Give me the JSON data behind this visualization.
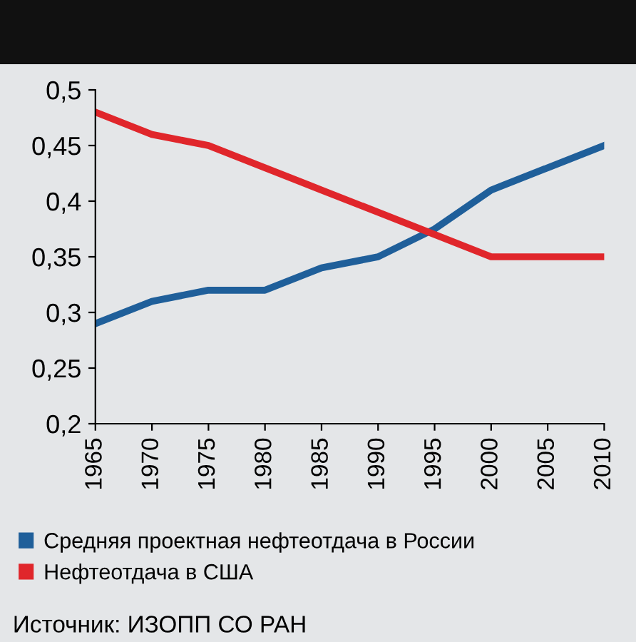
{
  "chart_data": {
    "type": "line",
    "x": [
      1965,
      1970,
      1975,
      1980,
      1985,
      1990,
      1995,
      2000,
      2005,
      2010
    ],
    "series": [
      {
        "name": "Средняя проектная нефтеотдача в России",
        "color": "#1f5f9a",
        "values": [
          0.29,
          0.31,
          0.32,
          0.32,
          0.34,
          0.35,
          0.375,
          0.41,
          0.43,
          0.45
        ]
      },
      {
        "name": "Нефтеотдача в США",
        "color": "#e0262b",
        "values": [
          0.48,
          0.46,
          0.45,
          0.43,
          0.41,
          0.39,
          0.37,
          0.35,
          0.35,
          0.35
        ]
      }
    ],
    "xlim": [
      1965,
      2010
    ],
    "xticks": [
      1965,
      1970,
      1975,
      1980,
      1985,
      1990,
      1995,
      2000,
      2005,
      2010
    ],
    "ylim": [
      0.2,
      0.5
    ],
    "yticks": [
      {
        "value": 0.2,
        "label": "0,2"
      },
      {
        "value": 0.25,
        "label": "0,25"
      },
      {
        "value": 0.3,
        "label": "0,3"
      },
      {
        "value": 0.35,
        "label": "0,35"
      },
      {
        "value": 0.4,
        "label": "0,4"
      },
      {
        "value": 0.45,
        "label": "0,45"
      },
      {
        "value": 0.5,
        "label": "0,5"
      }
    ],
    "grid": false,
    "legend": "bottom",
    "marker": "none",
    "line_style": "solid",
    "annotations": [
      "Источник: ИЗОПП СО РАН"
    ]
  }
}
